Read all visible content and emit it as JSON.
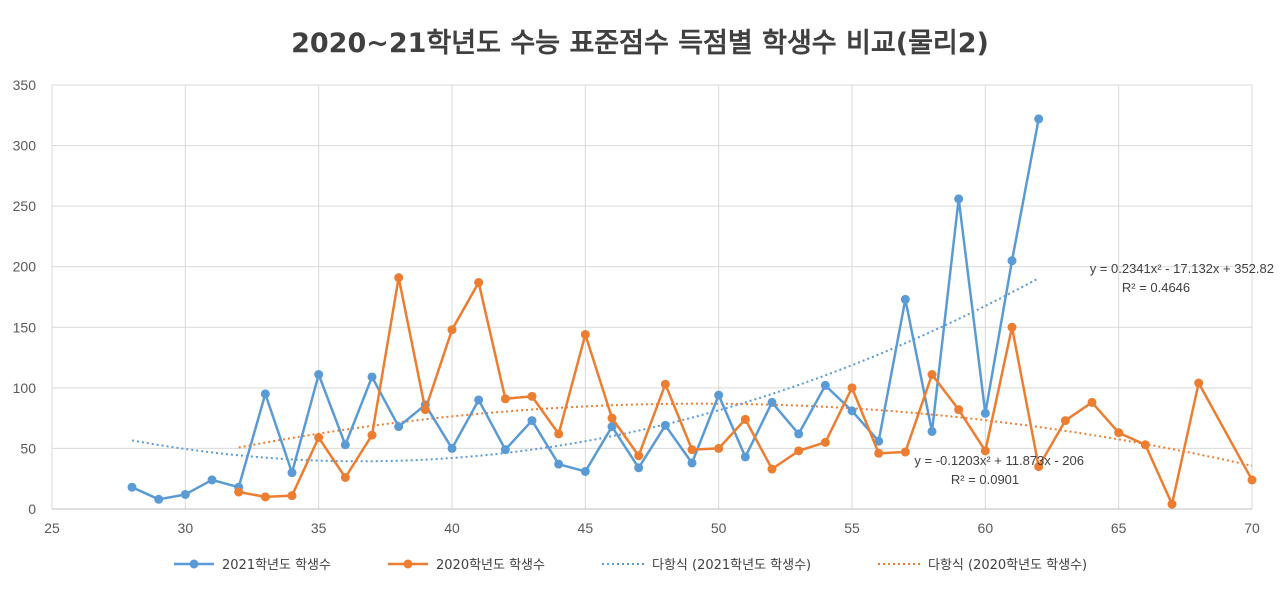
{
  "chart_data": {
    "type": "scatter",
    "title": "2020~21학년도 수능 표준점수 득점별 학생수 비교(물리2)",
    "xlim": [
      25,
      70
    ],
    "ylim": [
      0,
      350
    ],
    "x_ticks": [
      "25",
      "30",
      "35",
      "40",
      "45",
      "50",
      "55",
      "60",
      "65",
      "70"
    ],
    "y_ticks": [
      "0",
      "50",
      "100",
      "150",
      "200",
      "250",
      "300",
      "350"
    ],
    "grid": true,
    "legend_position": "bottom",
    "colors": {
      "s2021": "#5B9BD5",
      "s2020": "#ED7D31",
      "grid": "#D9D9D9"
    },
    "series": [
      {
        "name": "2021학년도 학생수",
        "x": [
          28,
          29,
          30,
          31,
          32,
          33,
          34,
          35,
          36,
          37,
          38,
          39,
          40,
          41,
          42,
          43,
          44,
          45,
          46,
          47,
          48,
          49,
          50,
          51,
          52,
          53,
          54,
          55,
          56,
          57,
          58,
          59,
          60,
          61,
          62
        ],
        "y": [
          18,
          8,
          12,
          24,
          18,
          95,
          30,
          111,
          53,
          109,
          68,
          86,
          50,
          90,
          49,
          73,
          37,
          31,
          68,
          34,
          69,
          38,
          94,
          43,
          88,
          62,
          102,
          81,
          56,
          173,
          64,
          256,
          79,
          205,
          322
        ]
      },
      {
        "name": "2020학년도 학생수",
        "x": [
          32,
          33,
          34,
          35,
          36,
          37,
          38,
          39,
          40,
          41,
          42,
          43,
          44,
          45,
          46,
          47,
          48,
          49,
          50,
          51,
          52,
          53,
          54,
          55,
          56,
          57,
          58,
          59,
          60,
          61,
          62,
          63,
          64,
          65,
          66,
          67,
          68,
          70
        ],
        "y": [
          14,
          10,
          11,
          59,
          26,
          61,
          191,
          82,
          148,
          187,
          91,
          93,
          62,
          144,
          75,
          44,
          103,
          49,
          50,
          74,
          33,
          48,
          55,
          100,
          46,
          47,
          111,
          82,
          48,
          150,
          35,
          73,
          88,
          63,
          53,
          4,
          104,
          24
        ]
      }
    ],
    "trendlines": [
      {
        "name": "다항식 (2021학년도 학생수)",
        "coefficients": [
          0.2341,
          -17.132,
          352.82
        ],
        "x_range": [
          28,
          62
        ],
        "equation": "y = 0.2341x² - 17.132x + 352.82",
        "r2": "R² = 0.4646"
      },
      {
        "name": "다항식 (2020학년도 학생수)",
        "coefficients": [
          -0.1203,
          11.873,
          -206
        ],
        "x_range": [
          32,
          70
        ],
        "equation": "y = -0.1203x² + 11.873x - 206",
        "r2": "R² = 0.0901"
      }
    ]
  }
}
